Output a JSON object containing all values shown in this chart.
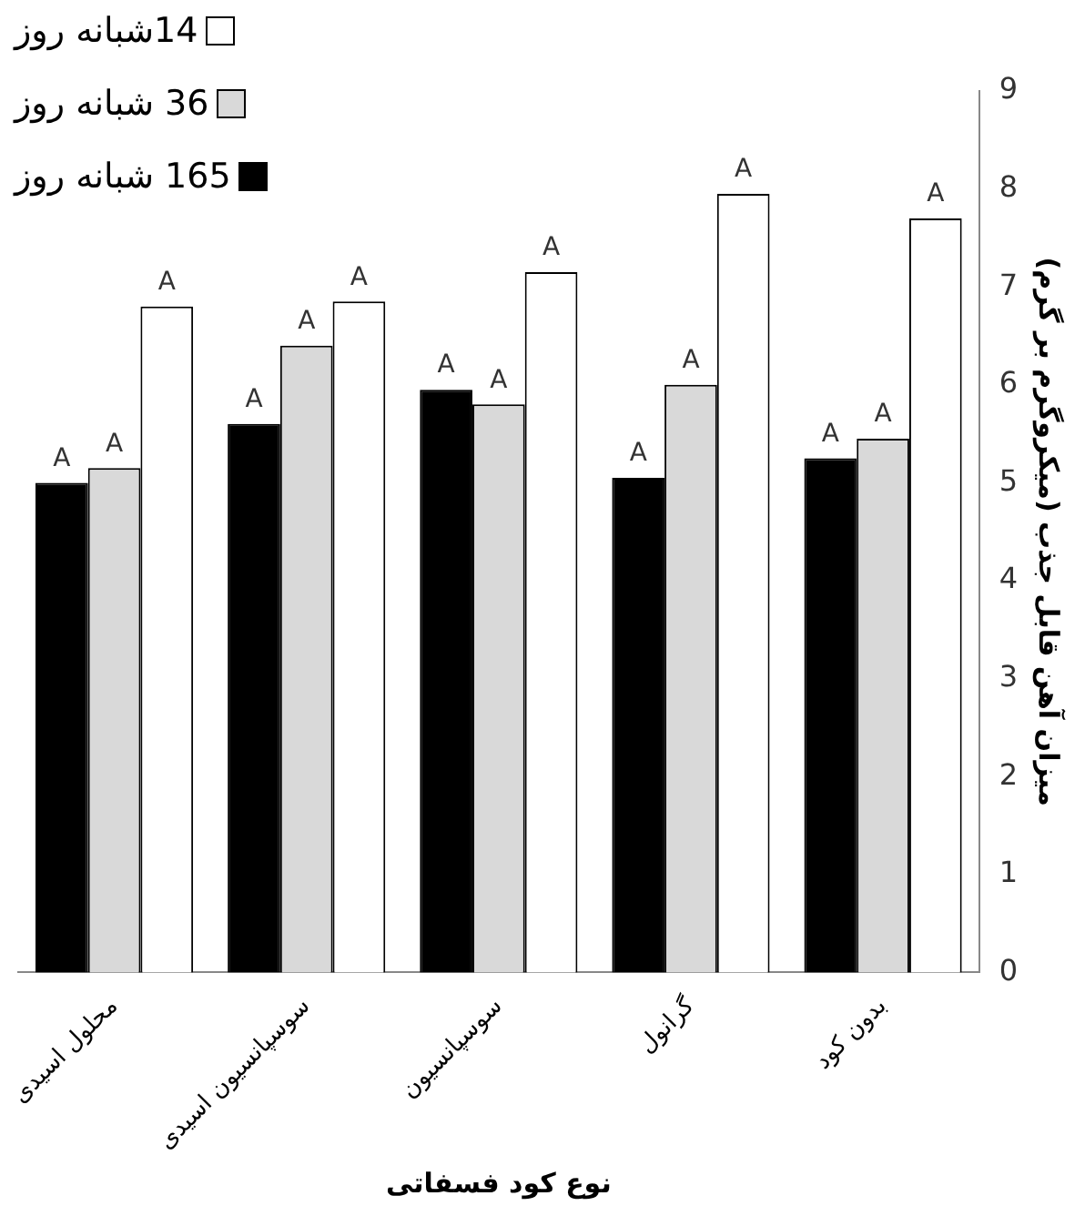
{
  "chart_data": {
    "type": "bar",
    "xlabel": "نوع کود فسفاتی",
    "ylabel": "میزان آهن قابل جذب (میکروگرم بر گرم)",
    "categories": [
      "محلول اسیدی",
      "سوسپانسیون اسیدی",
      "سوسپانسیون",
      "گرانول",
      "بدون کود"
    ],
    "series": [
      {
        "name": "165 شبانه روز",
        "color": "#000000",
        "values": [
          5.0,
          5.6,
          5.95,
          5.05,
          5.25
        ],
        "value_labels": [
          "A",
          "A",
          "A",
          "A",
          "A"
        ]
      },
      {
        "name": "36 شبانه روز",
        "color": "#d9d9d9",
        "values": [
          5.15,
          6.4,
          5.8,
          6.0,
          5.45
        ],
        "value_labels": [
          "A",
          "A",
          "A",
          "A",
          "A"
        ]
      },
      {
        "name": "14شبانه روز",
        "color": "#ffffff",
        "values": [
          6.8,
          6.85,
          7.15,
          7.95,
          7.7
        ],
        "value_labels": [
          "A",
          "A",
          "A",
          "A",
          "A"
        ]
      }
    ],
    "ylim": [
      0,
      9
    ],
    "yticks": [
      0,
      1,
      2,
      3,
      4,
      5,
      6,
      7,
      8,
      9
    ],
    "grid": false,
    "legend": "top left"
  }
}
